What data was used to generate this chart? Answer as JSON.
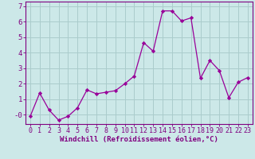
{
  "x": [
    0,
    1,
    2,
    3,
    4,
    5,
    6,
    7,
    8,
    9,
    10,
    11,
    12,
    13,
    14,
    15,
    16,
    17,
    18,
    19,
    20,
    21,
    22,
    23
  ],
  "y": [
    -0.1,
    1.4,
    0.3,
    -0.35,
    -0.1,
    0.45,
    1.6,
    1.35,
    1.45,
    1.55,
    2.0,
    2.5,
    4.65,
    4.1,
    6.7,
    6.7,
    6.05,
    6.25,
    2.35,
    3.5,
    2.85,
    1.1,
    2.1,
    2.4
  ],
  "line_color": "#990099",
  "marker": "D",
  "marker_size": 2.2,
  "bg_color": "#cce8e8",
  "grid_color": "#aacccc",
  "xlabel": "Windchill (Refroidissement éolien,°C)",
  "ylim": [
    -0.6,
    7.3
  ],
  "xlim": [
    -0.5,
    23.5
  ],
  "yticks": [
    0,
    1,
    2,
    3,
    4,
    5,
    6,
    7
  ],
  "ytick_labels": [
    "-0",
    "1",
    "2",
    "3",
    "4",
    "5",
    "6",
    "7"
  ],
  "xticks": [
    0,
    1,
    2,
    3,
    4,
    5,
    6,
    7,
    8,
    9,
    10,
    11,
    12,
    13,
    14,
    15,
    16,
    17,
    18,
    19,
    20,
    21,
    22,
    23
  ],
  "label_color": "#800080",
  "axis_color": "#800080",
  "tick_color": "#800080",
  "font_size": 6.5
}
